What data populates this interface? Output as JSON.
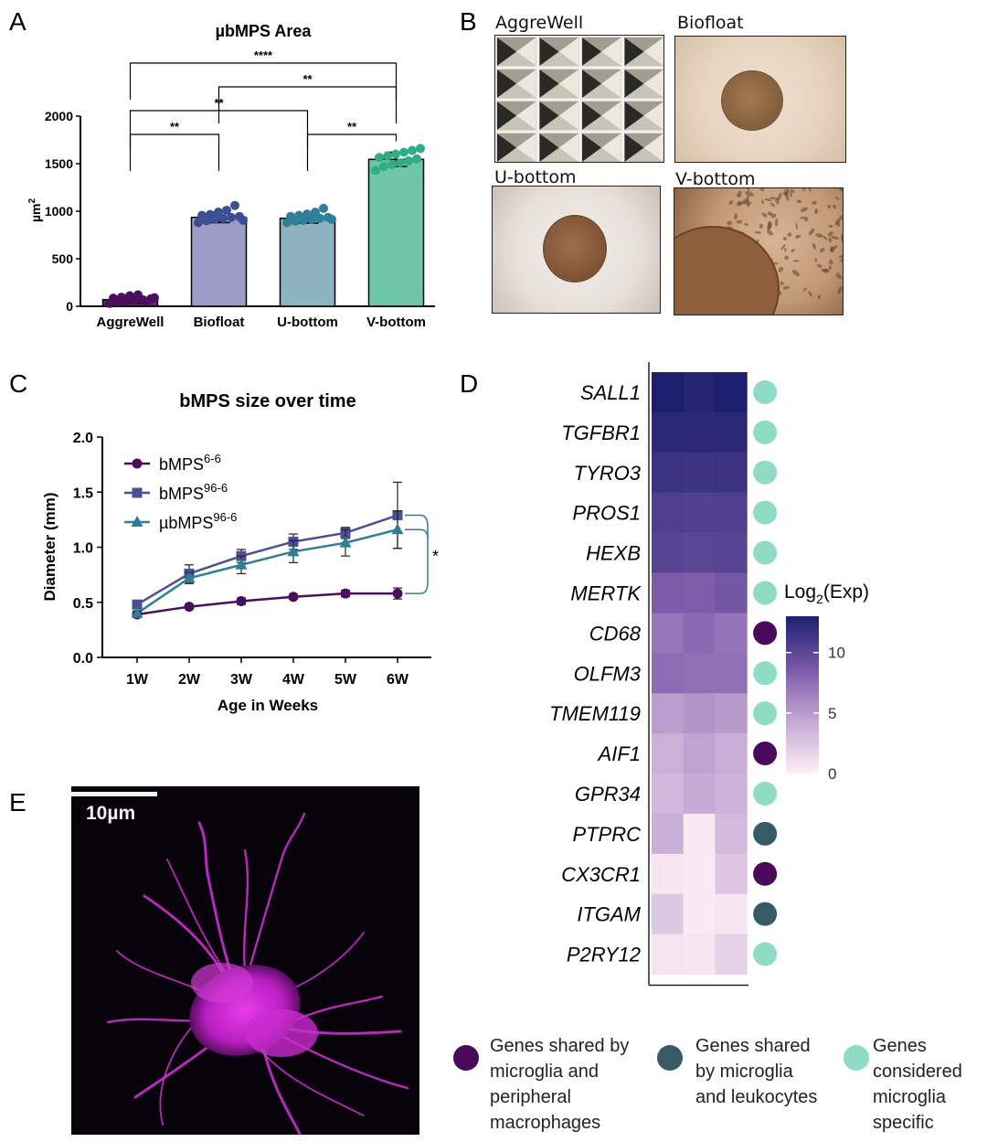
{
  "panels": {
    "A": "A",
    "B": "B",
    "C": "C",
    "D": "D",
    "E": "E"
  },
  "chart_data": [
    {
      "panel": "A",
      "type": "bar",
      "title": "µbMPS Area",
      "ylabel": "µm²",
      "ylabel_base": "µm",
      "ylabel_sup": "2",
      "ylim": [
        0,
        2000
      ],
      "yticks": [
        0,
        500,
        1000,
        1500,
        2000
      ],
      "categories": [
        "AggreWell",
        "Biofloat",
        "U-bottom",
        "V-bottom"
      ],
      "values": [
        70,
        935,
        925,
        1545
      ],
      "errors": [
        40,
        55,
        50,
        75
      ],
      "colors": [
        "#5b2a6e",
        "#9c9cc6",
        "#8db3c0",
        "#6fc6a6"
      ],
      "dot_colors": [
        "#4b0d5e",
        "#3c4f95",
        "#2f7f9a",
        "#2fae86"
      ],
      "dots": [
        [
          30,
          45,
          55,
          62,
          70,
          78,
          85,
          95,
          110,
          120,
          50,
          90
        ],
        [
          880,
          900,
          915,
          925,
          935,
          945,
          955,
          965,
          990,
          1010,
          1060,
          905
        ],
        [
          880,
          895,
          905,
          915,
          925,
          935,
          945,
          955,
          970,
          990,
          1030,
          915
        ],
        [
          1430,
          1470,
          1490,
          1510,
          1530,
          1550,
          1565,
          1580,
          1600,
          1620,
          1640,
          1660
        ]
      ],
      "significance": [
        {
          "from": 0,
          "to": 1,
          "label": "**",
          "level": 1950
        },
        {
          "from": 2,
          "to": 3,
          "label": "**",
          "level": 1950
        },
        {
          "from": 0,
          "to": 2,
          "label": "**",
          "level": 2200
        },
        {
          "from": 1,
          "to": 3,
          "label": "**",
          "level": 2450
        },
        {
          "from": 0,
          "to": 3,
          "label": "****",
          "level": 2700
        }
      ]
    },
    {
      "panel": "C",
      "type": "line",
      "title": "bMPS size over time",
      "xlabel": "Age in Weeks",
      "ylabel": "Diameter (mm)",
      "ylim": [
        0,
        2.0
      ],
      "yticks": [
        "0.0",
        "0.5",
        "1.0",
        "1.5",
        "2.0"
      ],
      "x": [
        "1W",
        "2W",
        "3W",
        "4W",
        "5W",
        "6W"
      ],
      "series": [
        {
          "name": "bMPS6-6",
          "name_base": "bMPS",
          "name_sup": "6-6",
          "marker": "circle",
          "color": "#4b0d5e",
          "values": [
            0.39,
            0.46,
            0.51,
            0.55,
            0.58,
            0.58
          ],
          "errors": [
            0.02,
            0.02,
            0.03,
            0.02,
            0.03,
            0.05
          ]
        },
        {
          "name": "bMPS96-6",
          "name_base": "bMPS",
          "name_sup": "96-6",
          "marker": "square",
          "color": "#4b4f96",
          "values": [
            0.48,
            0.76,
            0.92,
            1.05,
            1.13,
            1.29
          ],
          "errors": [
            0.03,
            0.08,
            0.06,
            0.07,
            0.05,
            0.3
          ]
        },
        {
          "name": "µbMPS96-6",
          "name_base": "µbMPS",
          "name_sup": "96-6",
          "marker": "triangle",
          "color": "#2e7f91",
          "values": [
            0.4,
            0.72,
            0.84,
            0.96,
            1.04,
            1.16
          ],
          "errors": [
            0.02,
            0.05,
            0.08,
            0.1,
            0.12,
            0.17
          ]
        }
      ],
      "significance": "*"
    },
    {
      "panel": "D",
      "type": "heatmap",
      "genes": [
        "SALL1",
        "TGFBR1",
        "TYRO3",
        "PROS1",
        "HEXB",
        "MERTK",
        "CD68",
        "OLFM3",
        "TMEM119",
        "AIF1",
        "GPR34",
        "PTPRC",
        "CX3CR1",
        "ITGAM",
        "P2RY12"
      ],
      "columns": 3,
      "values": [
        [
          13.0,
          12.6,
          13.2
        ],
        [
          12.3,
          12.3,
          12.3
        ],
        [
          11.5,
          11.4,
          11.5
        ],
        [
          10.6,
          10.5,
          10.6
        ],
        [
          10.2,
          10.1,
          10.2
        ],
        [
          8.5,
          8.4,
          8.9
        ],
        [
          7.0,
          7.7,
          7.1
        ],
        [
          7.6,
          7.3,
          7.3
        ],
        [
          5.0,
          5.4,
          5.1
        ],
        [
          3.8,
          4.6,
          4.0
        ],
        [
          3.3,
          4.2,
          3.7
        ],
        [
          3.9,
          0.3,
          3.2
        ],
        [
          0.5,
          0.3,
          2.5
        ],
        [
          2.4,
          0.3,
          0.5
        ],
        [
          0.6,
          0.5,
          1.8
        ]
      ],
      "gene_category": [
        "specific",
        "specific",
        "specific",
        "specific",
        "specific",
        "specific",
        "macrophage",
        "specific",
        "specific",
        "macrophage",
        "specific",
        "leukocyte",
        "macrophage",
        "leukocyte",
        "specific"
      ],
      "colorbar_title": "Log2(Exp)",
      "colorbar_title_base": "Log",
      "colorbar_title_sub": "2",
      "colorbar_title_rest": "(Exp)",
      "colorbar_ticks": [
        "0",
        "5",
        "10"
      ],
      "colorbar_range": [
        0,
        13
      ],
      "color_low": "#fdeef5",
      "color_high": "#1b1f6e",
      "legend": [
        {
          "key": "macrophage",
          "color": "#4a0a5c",
          "lines": [
            "Genes shared by",
            "microglia and",
            "peripheral",
            "macrophages"
          ]
        },
        {
          "key": "leukocyte",
          "color": "#375a67",
          "lines": [
            "Genes shared",
            "by microglia",
            "and leukocytes"
          ]
        },
        {
          "key": "specific",
          "color": "#8fdcc4",
          "lines": [
            "Genes",
            "considered",
            "microglia",
            "specific"
          ]
        }
      ]
    }
  ],
  "panel_b": {
    "labels": [
      "AggreWell",
      "Biofloat",
      "U-bottom",
      "V-bottom"
    ]
  },
  "panel_e": {
    "scale_bar_label": "10µm"
  }
}
